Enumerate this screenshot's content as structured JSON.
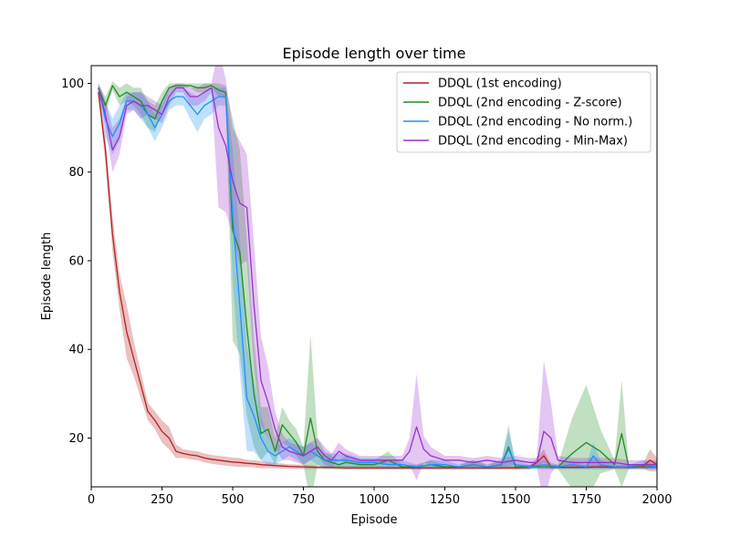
{
  "chart_data": {
    "type": "line",
    "title": "Episode length over time",
    "xlabel": "Episode",
    "ylabel": "Episode length",
    "xlim": [
      0,
      2000
    ],
    "ylim": [
      9,
      104
    ],
    "xticks": [
      0,
      250,
      500,
      750,
      1000,
      1250,
      1500,
      1750,
      2000
    ],
    "yticks": [
      20,
      40,
      60,
      80,
      100
    ],
    "legend_position": "top-right",
    "series": [
      {
        "name": "DDQL (1st encoding)",
        "color": "#b22222",
        "x": [
          25,
          50,
          75,
          100,
          125,
          150,
          175,
          200,
          225,
          250,
          275,
          300,
          325,
          350,
          375,
          400,
          425,
          450,
          475,
          500,
          525,
          550,
          575,
          600,
          650,
          700,
          750,
          800,
          850,
          900,
          950,
          1000,
          1100,
          1200,
          1300,
          1400,
          1500,
          1550,
          1575,
          1600,
          1625,
          1650,
          1700,
          1750,
          1800,
          1850,
          1900,
          1950,
          1975,
          2000
        ],
        "values": [
          98,
          85,
          66,
          53,
          44,
          38,
          32,
          26,
          24,
          21.5,
          20,
          17,
          16.5,
          16.2,
          16,
          15.5,
          15.2,
          15,
          14.8,
          14.6,
          14.5,
          14.3,
          14.2,
          14,
          13.8,
          13.6,
          13.5,
          13.4,
          13.4,
          13.3,
          13.3,
          13.3,
          13.3,
          13.3,
          13.3,
          13.3,
          13.3,
          13.4,
          14.5,
          16,
          13.5,
          13.4,
          13.4,
          13.4,
          13.5,
          13.4,
          13.4,
          13.6,
          15,
          14
        ],
        "band_halfwidth": [
          1,
          3,
          4,
          4,
          6,
          4,
          3,
          2,
          2,
          2.5,
          2.5,
          1.5,
          1,
          1,
          1,
          1,
          1,
          1,
          1,
          1,
          1,
          0.8,
          0.8,
          0.8,
          0.6,
          0.5,
          0.5,
          0.4,
          0.4,
          0.4,
          0.4,
          0.4,
          0.4,
          0.4,
          0.4,
          0.4,
          0.4,
          0.5,
          1,
          1.5,
          0.5,
          0.4,
          0.4,
          0.4,
          0.5,
          0.4,
          0.4,
          0.5,
          2.5,
          1.5
        ]
      },
      {
        "name": "DDQL (2nd encoding - Z-score)",
        "color": "#228b22",
        "x": [
          25,
          50,
          75,
          100,
          125,
          150,
          175,
          200,
          225,
          250,
          275,
          300,
          325,
          350,
          375,
          400,
          425,
          450,
          475,
          500,
          525,
          550,
          575,
          600,
          625,
          650,
          675,
          700,
          725,
          750,
          775,
          800,
          825,
          850,
          875,
          900,
          950,
          1000,
          1050,
          1100,
          1150,
          1200,
          1250,
          1300,
          1350,
          1400,
          1450,
          1475,
          1500,
          1550,
          1600,
          1650,
          1700,
          1750,
          1800,
          1850,
          1875,
          1900,
          1950,
          2000
        ],
        "values": [
          99,
          95,
          99.5,
          97,
          98,
          97,
          96,
          93,
          92,
          96,
          99,
          99.5,
          99.5,
          99.5,
          99,
          99,
          99.5,
          98.5,
          98,
          67,
          62,
          45,
          30,
          21,
          22,
          17,
          23,
          21,
          19,
          16,
          24.5,
          17,
          15,
          14.5,
          14,
          14.5,
          14,
          14,
          15,
          13.5,
          13.5,
          14,
          13.5,
          13.5,
          14,
          13.5,
          14,
          18,
          13.5,
          13.5,
          13.5,
          13.5,
          16.5,
          19,
          17,
          14,
          21,
          13.5,
          13.5,
          13.5
        ],
        "band_halfwidth": [
          1,
          2,
          1,
          2,
          2,
          2,
          3,
          3,
          3,
          2,
          1,
          0.5,
          0.5,
          0.5,
          1,
          1,
          0.5,
          1.5,
          1.5,
          25,
          23,
          20,
          12,
          6,
          5,
          3,
          4,
          3,
          3,
          2,
          19,
          3,
          2,
          1.5,
          1,
          1.5,
          1,
          1,
          2,
          0.5,
          0.5,
          1,
          0.5,
          0.5,
          1,
          0.5,
          1,
          5,
          0.5,
          0.5,
          0.5,
          0.5,
          8,
          13,
          5,
          1,
          12,
          0.5,
          0.5,
          0.5
        ]
      },
      {
        "name": "DDQL (2nd encoding - No norm.)",
        "color": "#1e90ff",
        "x": [
          25,
          50,
          75,
          100,
          125,
          150,
          175,
          200,
          225,
          250,
          275,
          300,
          325,
          350,
          375,
          400,
          425,
          450,
          475,
          500,
          525,
          550,
          575,
          600,
          625,
          650,
          675,
          700,
          725,
          750,
          775,
          800,
          825,
          850,
          900,
          950,
          1000,
          1050,
          1100,
          1150,
          1200,
          1250,
          1300,
          1350,
          1400,
          1450,
          1475,
          1500,
          1550,
          1600,
          1650,
          1700,
          1750,
          1775,
          1800,
          1850,
          1900,
          1950,
          2000
        ],
        "values": [
          99,
          92,
          88,
          91,
          96,
          96,
          95,
          93,
          90,
          93,
          96,
          97,
          97,
          95,
          93,
          95,
          96,
          97,
          97,
          70,
          50,
          29,
          25,
          20,
          17,
          16,
          17,
          18,
          17,
          16,
          17,
          16,
          15,
          15,
          15,
          14.5,
          14.5,
          14,
          14,
          13.5,
          14,
          14,
          13.5,
          14,
          13.5,
          14,
          17.5,
          14,
          13.5,
          14,
          13.5,
          14,
          13.5,
          16,
          14,
          13.5,
          13.5,
          14,
          13.5
        ],
        "band_halfwidth": [
          1,
          4,
          4,
          4,
          2,
          2,
          3,
          3,
          3,
          3,
          2,
          2,
          2,
          3,
          4,
          3,
          3,
          2,
          2,
          15,
          15,
          12,
          8,
          5,
          3,
          2,
          2,
          2,
          2,
          2,
          2,
          2,
          1.5,
          1.5,
          1.5,
          1,
          1,
          1,
          1,
          0.5,
          1,
          1,
          0.5,
          1,
          0.5,
          1,
          4,
          1,
          0.5,
          1,
          0.5,
          1,
          0.5,
          3,
          1,
          0.5,
          0.5,
          1,
          0.5
        ]
      },
      {
        "name": "DDQL (2nd encoding - Min-Max)",
        "color": "#9932cc",
        "x": [
          25,
          50,
          75,
          100,
          125,
          150,
          175,
          200,
          225,
          250,
          275,
          300,
          325,
          350,
          375,
          400,
          425,
          450,
          475,
          500,
          525,
          550,
          575,
          600,
          625,
          650,
          675,
          700,
          725,
          750,
          775,
          800,
          825,
          850,
          875,
          900,
          950,
          1000,
          1050,
          1100,
          1125,
          1150,
          1175,
          1200,
          1250,
          1300,
          1350,
          1400,
          1450,
          1500,
          1550,
          1575,
          1600,
          1625,
          1650,
          1700,
          1750,
          1800,
          1850,
          1900,
          1950,
          2000
        ],
        "values": [
          99,
          93,
          85,
          88,
          95,
          96,
          95,
          95,
          94,
          93,
          97,
          99,
          99,
          97,
          97,
          98,
          99,
          90,
          86,
          78,
          73,
          72,
          50,
          33,
          28,
          22,
          18,
          17,
          16.5,
          16,
          17,
          18,
          16,
          15,
          17,
          16,
          15,
          15,
          15,
          15,
          17,
          22.5,
          17.5,
          16,
          15,
          15,
          14.5,
          15,
          14.5,
          15,
          14.5,
          14.5,
          21.5,
          20,
          15,
          14.5,
          14.5,
          14.5,
          14.5,
          14,
          14,
          14
        ],
        "band_halfwidth": [
          1,
          3,
          5,
          4,
          2,
          2,
          3,
          2,
          2,
          2,
          2,
          1,
          1,
          2,
          2,
          2,
          1,
          18,
          15,
          12,
          14,
          12,
          14,
          10,
          8,
          4,
          3,
          2,
          2,
          2,
          2,
          2,
          2,
          1.5,
          2,
          1.5,
          1,
          1,
          1,
          1,
          3,
          12,
          3,
          2,
          1,
          1,
          1,
          1,
          1,
          1,
          1,
          1,
          16,
          8,
          1,
          1,
          1,
          1,
          1,
          1,
          1,
          1
        ]
      }
    ]
  }
}
